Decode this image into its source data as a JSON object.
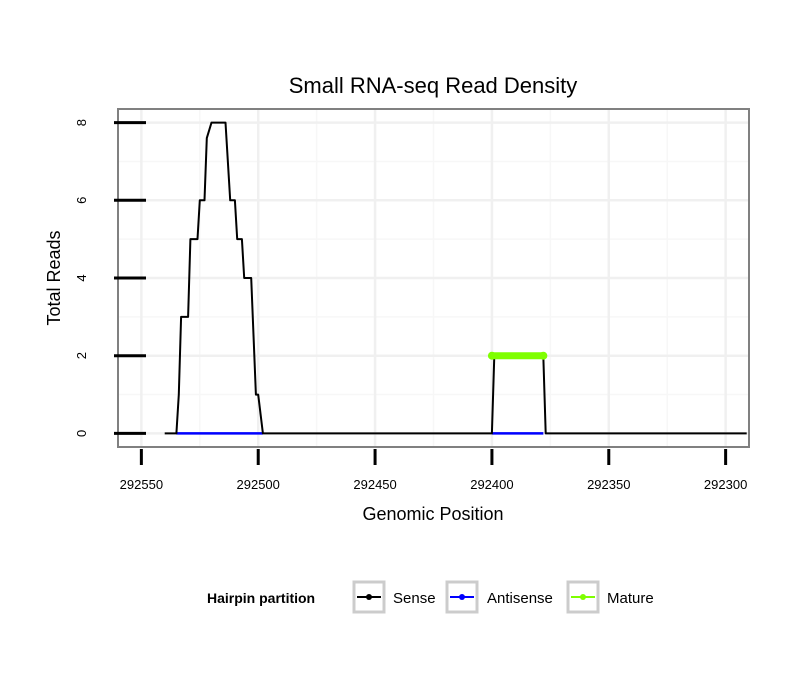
{
  "chart_data": {
    "type": "line",
    "title": "Small RNA-seq Read Density",
    "xlabel": "Genomic Position",
    "ylabel": "Total Reads",
    "xlim": [
      292560,
      292290
    ],
    "ylim": [
      -0.35,
      8.35
    ],
    "x_reversed": true,
    "grid": true,
    "x_ticks": [
      292550,
      292500,
      292450,
      292400,
      292350,
      292300
    ],
    "x_tick_labels": [
      "292550",
      "292500",
      "292450",
      "292400",
      "292350",
      "292300"
    ],
    "y_ticks": [
      0,
      2,
      4,
      6,
      8
    ],
    "y_tick_labels": [
      "0",
      "2",
      "4",
      "6",
      "8"
    ],
    "legend": {
      "title": "Hairpin partition",
      "placement": "bottom",
      "entries": [
        {
          "name": "Sense",
          "color": "#000000"
        },
        {
          "name": "Antisense",
          "color": "#0000ff"
        },
        {
          "name": "Mature",
          "color": "#7fff00"
        }
      ]
    },
    "series": [
      {
        "name": "Sense",
        "color": "#000000",
        "x": [
          292540,
          292535,
          292534,
          292533,
          292530,
          292529,
          292526,
          292525,
          292523,
          292522,
          292520,
          292519,
          292517,
          292514,
          292512,
          292510,
          292509,
          292507,
          292506,
          292503,
          292501,
          292500,
          292498,
          292400,
          292399,
          292378,
          292377,
          292291
        ],
        "y": [
          0,
          0,
          1,
          3,
          3,
          5,
          5,
          6,
          6,
          7.6,
          8,
          8,
          8,
          8,
          6,
          6,
          5,
          5,
          4,
          4,
          1,
          1,
          0,
          0,
          2,
          2,
          0,
          0
        ]
      },
      {
        "name": "Antisense",
        "color": "#0000ff",
        "x": [
          292535,
          292498,
          292400,
          292378
        ],
        "y": [
          0,
          0,
          0,
          0
        ],
        "segments": [
          [
            292535,
            292498
          ],
          [
            292400,
            292378
          ]
        ]
      },
      {
        "name": "Mature",
        "color": "#7fff00",
        "x": [
          292400,
          292378
        ],
        "y": [
          2,
          2
        ]
      }
    ]
  }
}
